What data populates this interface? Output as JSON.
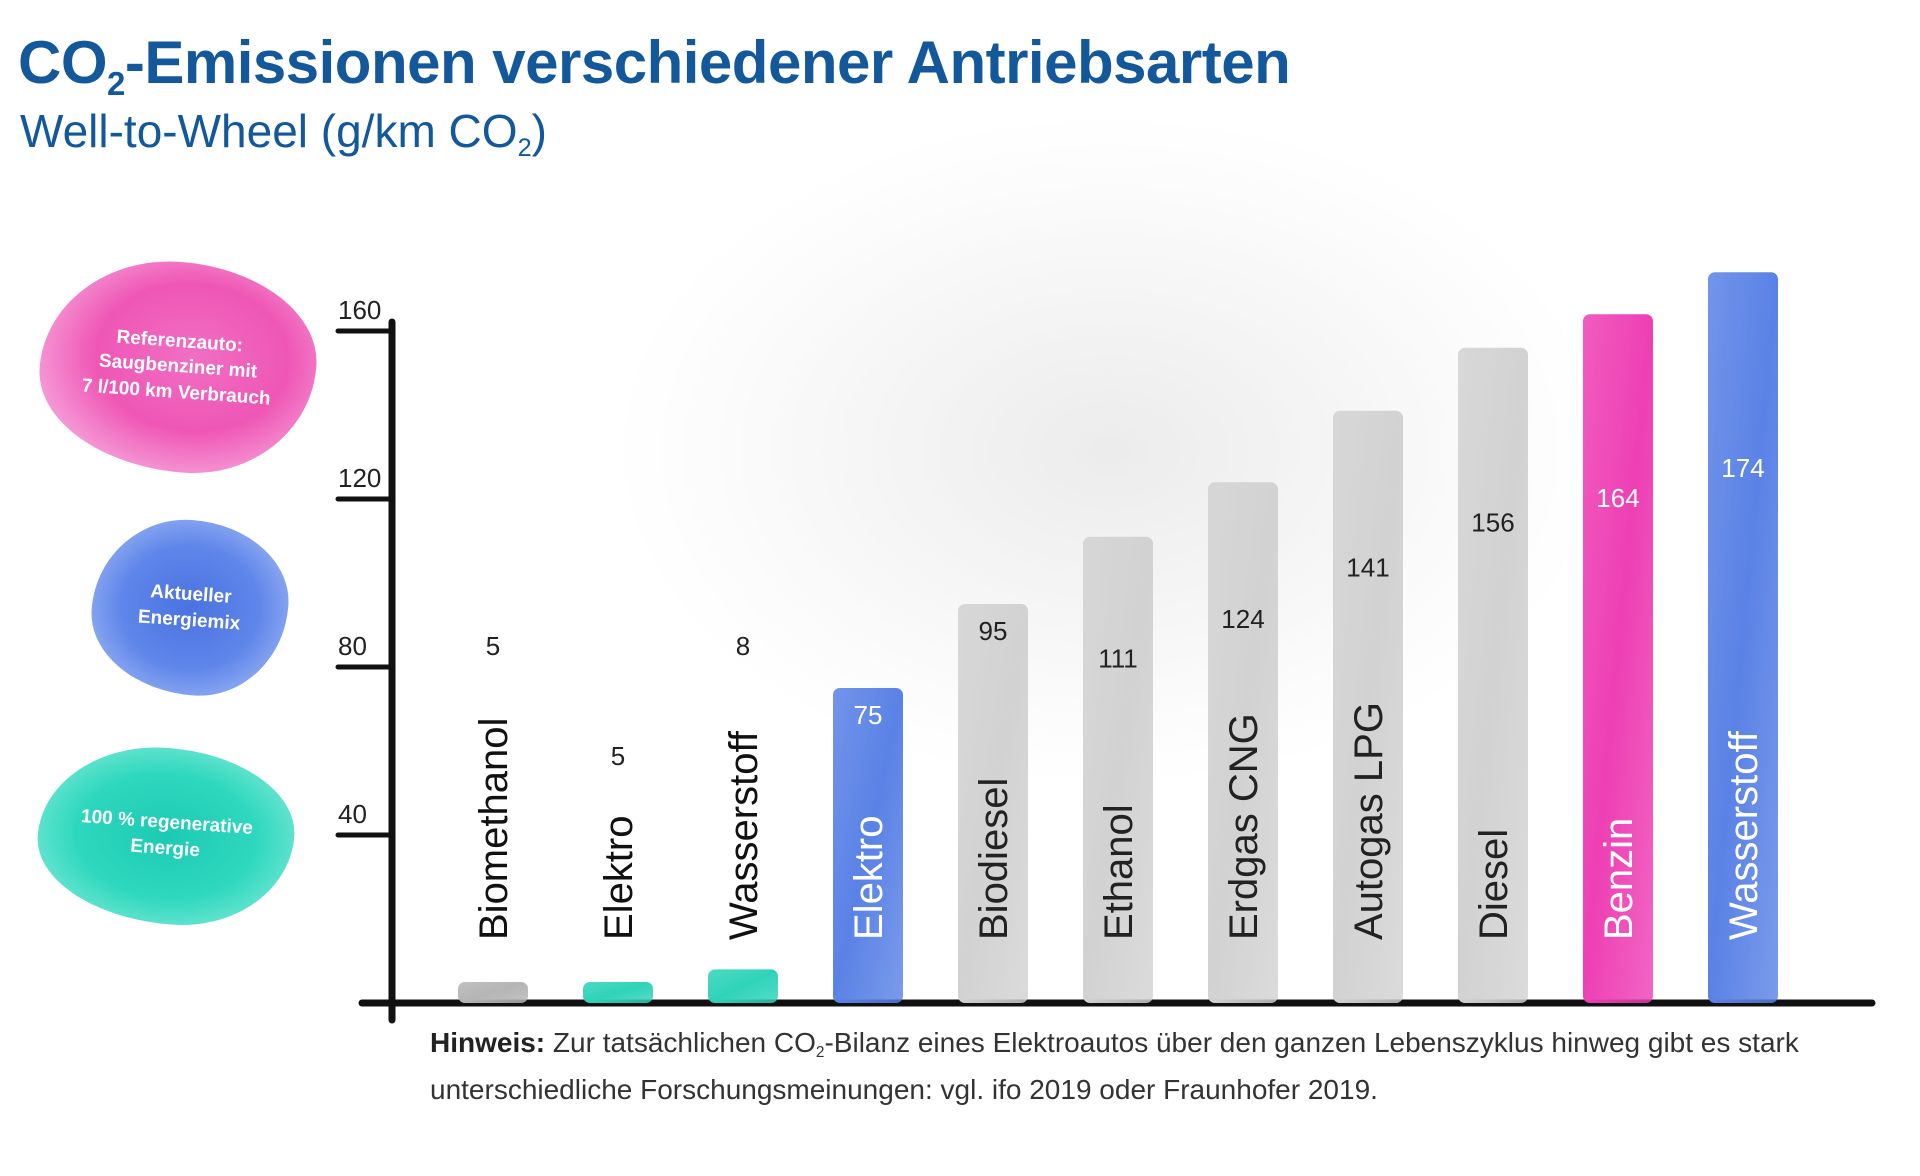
{
  "title": {
    "prefix": "CO",
    "sub": "2",
    "rest": "-Emissionen verschiedener Antriebsarten"
  },
  "subtitle": {
    "prefix": "Well-to-Wheel (g/km CO",
    "sub": "2",
    "suffix": ")"
  },
  "legend": {
    "reference": "Referenzauto:\nSaugbenziner mit\n7 l/100 km Verbrauch",
    "current_mix": "Aktueller\nEnergiemix",
    "renewable": "100 % regenerative\nEnergie"
  },
  "colors": {
    "title": "#14589c",
    "gray": "#d2d2d2",
    "gray_dark": "#b5b5b5",
    "teal": "#2fd3b9",
    "blue": "#5a82e6",
    "pink": "#ee3fb4"
  },
  "chart_data": {
    "type": "bar",
    "ylim": [
      0,
      160
    ],
    "yticks": [
      "40",
      "80",
      "120",
      "160"
    ],
    "categories": [
      "Biomethanol",
      "Elektro",
      "Wasserstoff",
      "Elektro",
      "Biodiesel",
      "Ethanol",
      "Erdgas CNG",
      "Autogas LPG",
      "Diesel",
      "Benzin",
      "Wasserstoff"
    ],
    "values": [
      5,
      5,
      8,
      75,
      95,
      111,
      124,
      141,
      156,
      164,
      174
    ],
    "value_labels": [
      "5",
      "5",
      "8",
      "75",
      "95",
      "111",
      "124",
      "141",
      "156",
      "164",
      "174"
    ],
    "bar_colors": [
      "gray_dark",
      "teal",
      "teal",
      "blue",
      "gray",
      "gray",
      "gray",
      "gray",
      "gray",
      "pink",
      "blue"
    ]
  },
  "note": {
    "bold": "Hinweis:",
    "text1": " Zur tatsächlichen CO",
    "sub": "2",
    "text2": "-Bilanz eines Elektroautos über den ganzen Lebenszyklus hinweg gibt es stark unterschiedliche Forschungsmeinungen: vgl. ifo 2019 oder Fraunhofer 2019."
  }
}
